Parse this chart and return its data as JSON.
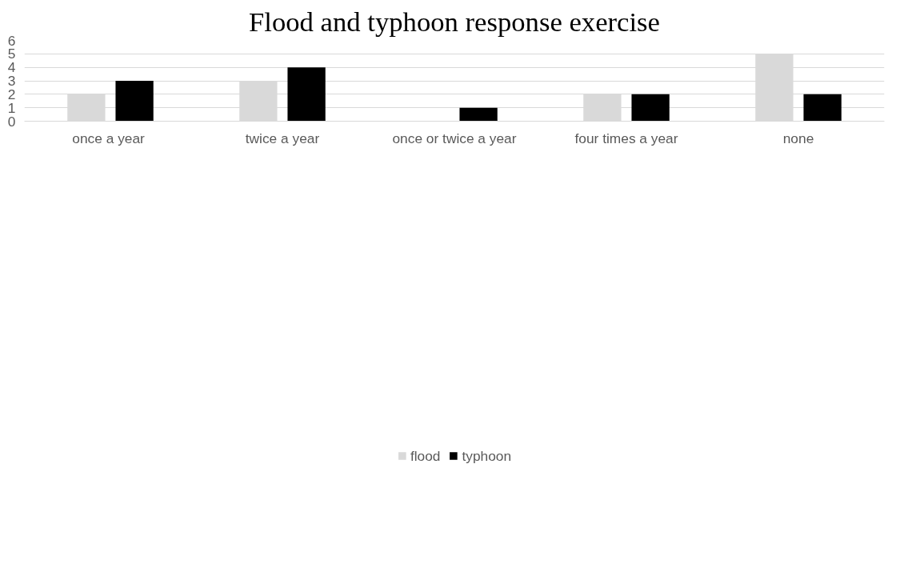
{
  "chart_data": {
    "type": "bar",
    "title": "Flood and typhoon response exercise",
    "categories": [
      "once a  year",
      "twice a year",
      "once or twice a year",
      "four times a year",
      "none"
    ],
    "series": [
      {
        "name": "flood",
        "color": "#d9d9d9",
        "values": [
          2,
          3,
          0,
          2,
          5
        ]
      },
      {
        "name": "typhoon",
        "color": "#000000",
        "values": [
          3,
          4,
          1,
          2,
          2
        ]
      }
    ],
    "ylim": [
      0,
      6
    ],
    "yticks": [
      0,
      1,
      2,
      3,
      4,
      5,
      6
    ],
    "grid": "y",
    "legend": "bottom"
  }
}
